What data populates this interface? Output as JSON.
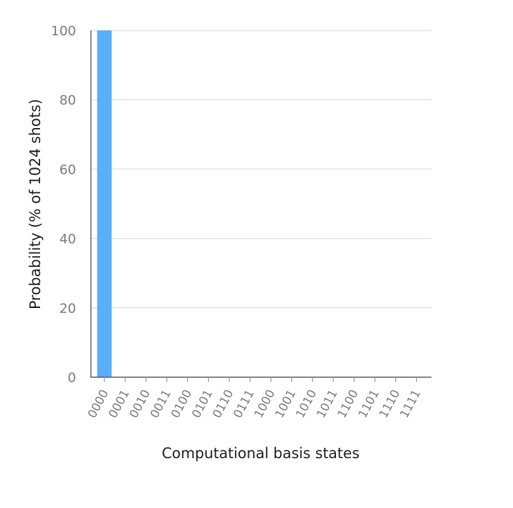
{
  "chart_data": {
    "type": "bar",
    "categories": [
      "0000",
      "0001",
      "0010",
      "0011",
      "0100",
      "0101",
      "0110",
      "0111",
      "1000",
      "1001",
      "1010",
      "1011",
      "1100",
      "1101",
      "1110",
      "1111"
    ],
    "values": [
      100,
      0,
      0,
      0,
      0,
      0,
      0,
      0,
      0,
      0,
      0,
      0,
      0,
      0,
      0,
      0
    ],
    "xlabel": "Computational basis states",
    "ylabel": "Probability (% of 1024 shots)",
    "ylim": [
      0,
      100
    ],
    "yticks": [
      0,
      20,
      40,
      60,
      80,
      100
    ],
    "grid": true,
    "bar_color": "#5aaefc"
  }
}
